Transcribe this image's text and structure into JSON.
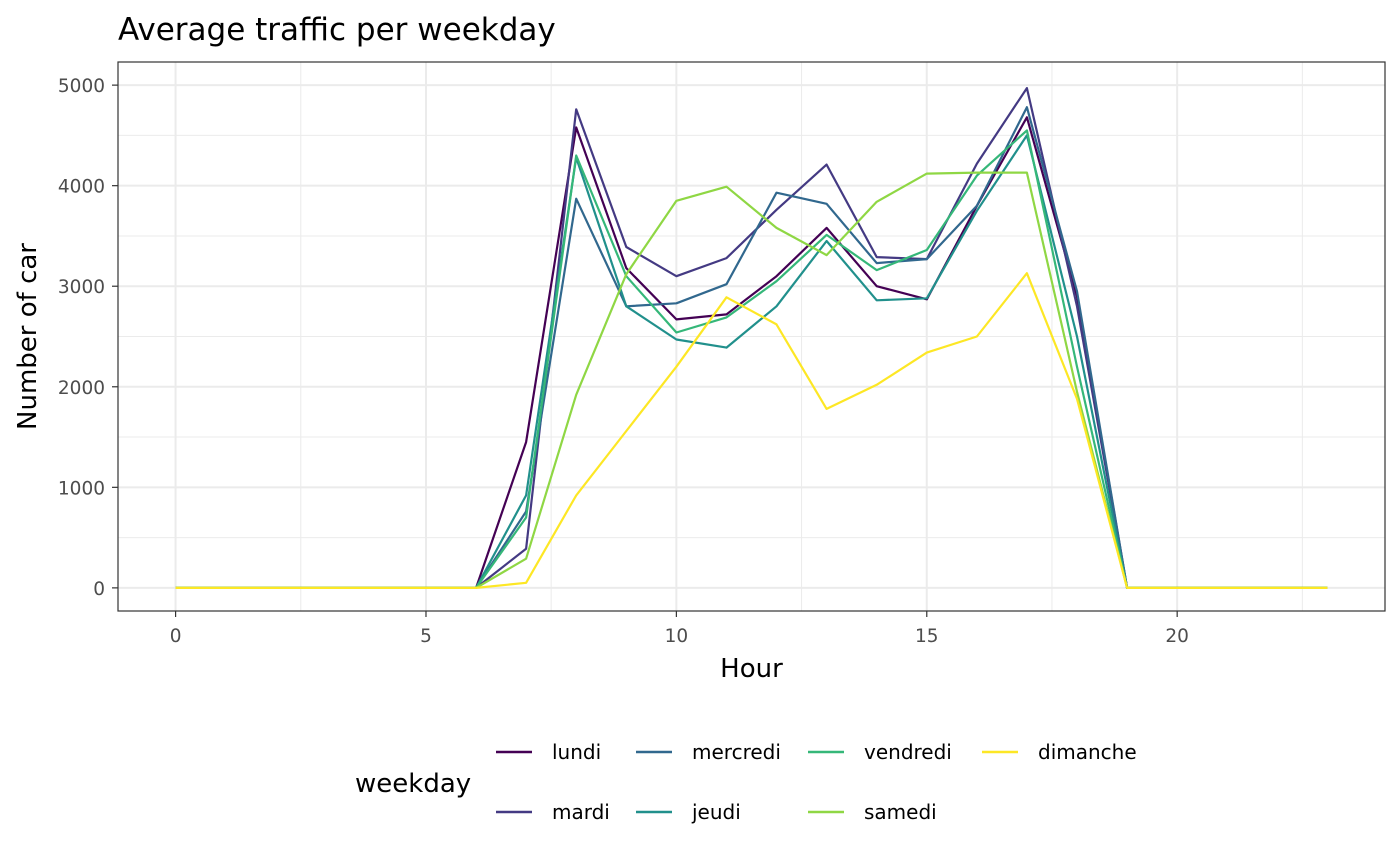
{
  "chart_data": {
    "type": "line",
    "title": "Average traffic per weekday",
    "xlabel": "Hour",
    "ylabel": "Number of car",
    "xlim": [
      -1.15,
      24.15
    ],
    "ylim": [
      -230,
      5230
    ],
    "x_ticks": [
      0,
      5,
      10,
      15,
      20
    ],
    "y_ticks": [
      0,
      1000,
      2000,
      3000,
      4000,
      5000
    ],
    "grid": true,
    "legend_position": "bottom",
    "legend_title": "weekday",
    "x": [
      0,
      1,
      2,
      3,
      4,
      5,
      6,
      7,
      8,
      9,
      10,
      11,
      12,
      13,
      14,
      15,
      16,
      17,
      18,
      19,
      20,
      21,
      22,
      23
    ],
    "series": [
      {
        "name": "lundi",
        "color": "#440154",
        "values": [
          0,
          0,
          0,
          0,
          0,
          0,
          0,
          1450,
          4580,
          3180,
          2670,
          2720,
          3100,
          3580,
          3000,
          2870,
          3800,
          4680,
          2900,
          0,
          0,
          0,
          0,
          0
        ]
      },
      {
        "name": "mardi",
        "color": "#443a83",
        "values": [
          0,
          0,
          0,
          0,
          0,
          0,
          0,
          390,
          4760,
          3390,
          3100,
          3280,
          3760,
          4210,
          3290,
          3270,
          4220,
          4970,
          2800,
          0,
          0,
          0,
          0,
          0
        ]
      },
      {
        "name": "mercredi",
        "color": "#31688e",
        "values": [
          0,
          0,
          0,
          0,
          0,
          0,
          0,
          760,
          3870,
          2800,
          2830,
          3020,
          3930,
          3820,
          3230,
          3270,
          3800,
          4780,
          2950,
          0,
          0,
          0,
          0,
          0
        ]
      },
      {
        "name": "jeudi",
        "color": "#21908c",
        "values": [
          0,
          0,
          0,
          0,
          0,
          0,
          0,
          920,
          4280,
          2800,
          2470,
          2390,
          2800,
          3450,
          2860,
          2880,
          3750,
          4500,
          2500,
          0,
          0,
          0,
          0,
          0
        ]
      },
      {
        "name": "vendredi",
        "color": "#35b779",
        "values": [
          0,
          0,
          0,
          0,
          0,
          0,
          0,
          700,
          4300,
          3100,
          2540,
          2690,
          3050,
          3510,
          3160,
          3360,
          4100,
          4550,
          2200,
          0,
          0,
          0,
          0,
          0
        ]
      },
      {
        "name": "samedi",
        "color": "#8fd744",
        "values": [
          0,
          0,
          0,
          0,
          0,
          0,
          0,
          290,
          1920,
          3120,
          3850,
          3990,
          3580,
          3310,
          3840,
          4120,
          4130,
          4130,
          1950,
          0,
          0,
          0,
          0,
          0
        ]
      },
      {
        "name": "dimanche",
        "color": "#fde725",
        "values": [
          0,
          0,
          0,
          0,
          0,
          0,
          0,
          50,
          920,
          1560,
          2200,
          2890,
          2620,
          1780,
          2020,
          2340,
          2500,
          3130,
          1880,
          0,
          0,
          0,
          0,
          0
        ]
      }
    ],
    "legend_layout": [
      [
        "lundi",
        "mercredi",
        "vendredi",
        "dimanche"
      ],
      [
        "mardi",
        "jeudi",
        "samedi"
      ]
    ]
  }
}
